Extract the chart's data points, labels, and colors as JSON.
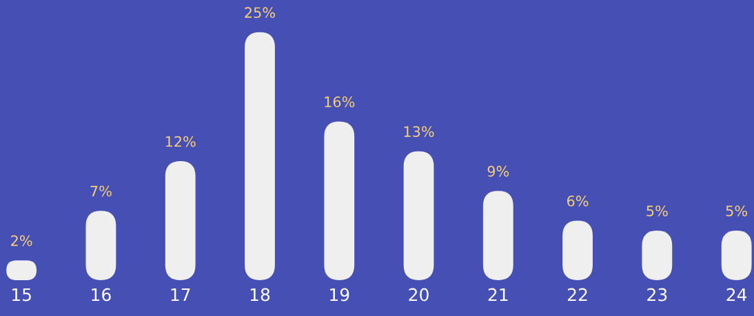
{
  "chart_data": {
    "type": "bar",
    "categories": [
      "15",
      "16",
      "17",
      "18",
      "19",
      "20",
      "21",
      "22",
      "23",
      "24"
    ],
    "values": [
      2,
      7,
      12,
      25,
      16,
      13,
      9,
      6,
      5,
      5
    ],
    "value_labels": [
      "2%",
      "7%",
      "12%",
      "25%",
      "16%",
      "13%",
      "9%",
      "6%",
      "5%",
      "5%"
    ],
    "color": "#efefef",
    "grid": false
  }
}
